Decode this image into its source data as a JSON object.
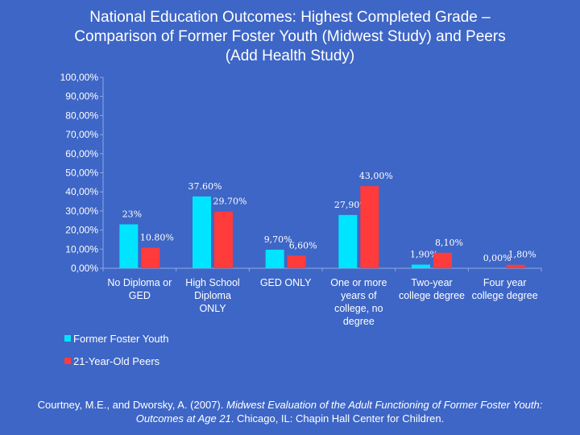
{
  "chart_data": {
    "type": "bar",
    "title_lines": [
      "National Education Outcomes: Highest Completed Grade –",
      "Comparison of Former Foster Youth (Midwest Study) and Peers",
      "(Add Health Study)"
    ],
    "categories": [
      [
        "No Diploma or",
        "GED"
      ],
      [
        "High School",
        "Diploma",
        "ONLY"
      ],
      [
        "GED ONLY"
      ],
      [
        "One or more",
        "years of",
        "college, no",
        "degree"
      ],
      [
        "Two-year",
        "college degree"
      ],
      [
        "Four year",
        "college degree"
      ]
    ],
    "series": [
      {
        "name": "Former Foster Youth",
        "color": "#00e5ff",
        "values": [
          23,
          37.6,
          9.7,
          27.9,
          1.9,
          0.0
        ],
        "labels": [
          "23%",
          "37.60%",
          "9,70%",
          "27,90%",
          "1,90%",
          "0,00%"
        ]
      },
      {
        "name": "21-Year-Old Peers",
        "color": "#ff3b3b",
        "values": [
          10.8,
          29.7,
          6.6,
          43.0,
          8.1,
          1.8
        ],
        "labels": [
          "10.80%",
          "29.70%",
          "6,60%",
          "43,00%",
          "8,10%",
          "1,80%"
        ]
      }
    ],
    "y_ticks": [
      "0,00%",
      "10,00%",
      "20,00%",
      "30,00%",
      "40,00%",
      "50,00%",
      "60,00%",
      "70,00%",
      "80,00%",
      "90,00%",
      "100,00%"
    ],
    "ylim": [
      0,
      100
    ],
    "grid": false,
    "legend_position": "bottom-left"
  },
  "citation": {
    "line1_plain": "Courtney, M.E., and Dworsky, A. (2007). ",
    "line1_italic": "Midwest Evaluation of the Adult Functioning of Former Foster Youth:",
    "line2_italic": "Outcomes at Age 21",
    "line2_plain": ". Chicago, IL: Chapin Hall Center for Children."
  }
}
